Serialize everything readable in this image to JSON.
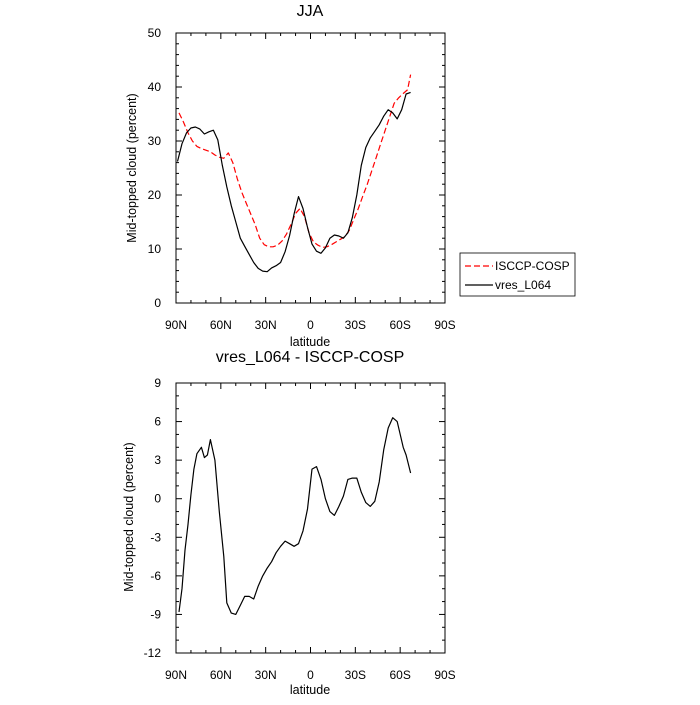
{
  "chart_data": [
    {
      "type": "line",
      "title": "JJA",
      "xlabel": "latitude",
      "ylabel": "Mid-topped cloud (percent)",
      "x_ticks": [
        90,
        60,
        30,
        0,
        -30,
        -60,
        -90
      ],
      "x_tick_labels": [
        "90N",
        "60N",
        "30N",
        "0",
        "30S",
        "60S",
        "90S"
      ],
      "xlim": [
        90,
        -90
      ],
      "y_ticks": [
        0,
        10,
        20,
        30,
        40,
        50
      ],
      "y_tick_labels": [
        "0",
        "10",
        "20",
        "30",
        "40",
        "50"
      ],
      "ylim": [
        0,
        50
      ],
      "legend_position": "right",
      "series": [
        {
          "name": "ISCCP-COSP",
          "color": "#ff0000",
          "dash": "dashed",
          "x": [
            88,
            85,
            82,
            79,
            76,
            73,
            70,
            67,
            64,
            61,
            58,
            55,
            52,
            49,
            46,
            43,
            40,
            37,
            34,
            31,
            28,
            25,
            22,
            19,
            16,
            13,
            10,
            7,
            4,
            1,
            -2,
            -5,
            -8,
            -11,
            -14,
            -17,
            -20,
            -23,
            -26,
            -29,
            -32,
            -35,
            -38,
            -41,
            -44,
            -47,
            -50,
            -53,
            -56,
            -59,
            -62,
            -65,
            -67
          ],
          "values": [
            35.2,
            33.5,
            31.5,
            30.0,
            29.0,
            28.6,
            28.3,
            28.0,
            27.4,
            27.0,
            26.8,
            27.8,
            26.0,
            23.0,
            20.5,
            18.5,
            16.5,
            14.5,
            12.0,
            10.8,
            10.4,
            10.4,
            10.7,
            11.5,
            12.8,
            14.6,
            16.6,
            17.5,
            16.0,
            13.0,
            11.3,
            10.7,
            10.3,
            10.4,
            10.8,
            11.3,
            11.8,
            12.3,
            13.5,
            15.5,
            17.5,
            19.8,
            22.0,
            24.5,
            27.0,
            29.5,
            32.0,
            34.5,
            37.0,
            38.0,
            38.8,
            39.5,
            42.3
          ]
        },
        {
          "name": "vres_L064",
          "color": "#000000",
          "dash": "solid",
          "x": [
            89,
            86,
            83,
            80,
            77,
            74,
            71,
            68,
            65,
            62,
            59,
            56,
            53,
            50,
            47,
            44,
            41,
            38,
            35,
            32,
            29,
            26,
            23,
            20,
            17,
            14,
            11,
            8,
            5,
            2,
            -1,
            -4,
            -7,
            -10,
            -13,
            -16,
            -19,
            -22,
            -25,
            -28,
            -31,
            -34,
            -37,
            -40,
            -43,
            -46,
            -49,
            -52,
            -55,
            -58,
            -61,
            -64,
            -67
          ],
          "values": [
            26.2,
            29.5,
            31.5,
            32.4,
            32.6,
            32.2,
            31.3,
            31.7,
            32.0,
            30.2,
            25.5,
            21.5,
            18.0,
            15.0,
            12.0,
            10.5,
            9.0,
            7.5,
            6.4,
            5.9,
            5.8,
            6.5,
            6.9,
            7.5,
            9.5,
            12.5,
            16.5,
            19.7,
            17.5,
            14.0,
            10.9,
            9.6,
            9.2,
            10.2,
            12.0,
            12.6,
            12.4,
            12.0,
            13.0,
            15.8,
            20.0,
            25.5,
            28.8,
            30.6,
            31.8,
            33.0,
            34.6,
            35.8,
            35.2,
            34.1,
            35.8,
            38.7,
            39.0
          ]
        }
      ]
    },
    {
      "type": "line",
      "title": "vres_L064 - ISCCP-COSP",
      "xlabel": "latitude",
      "ylabel": "Mid-topped cloud (percent)",
      "x_ticks": [
        90,
        60,
        30,
        0,
        -30,
        -60,
        -90
      ],
      "x_tick_labels": [
        "90N",
        "60N",
        "30N",
        "0",
        "30S",
        "60S",
        "90S"
      ],
      "xlim": [
        90,
        -90
      ],
      "y_ticks": [
        -12,
        -9,
        -6,
        -3,
        0,
        3,
        6,
        9
      ],
      "y_tick_labels": [
        "-12",
        "-9",
        "-6",
        "-3",
        "0",
        "3",
        "6",
        "9"
      ],
      "ylim": [
        -12,
        9
      ],
      "series": [
        {
          "color": "#000000",
          "dash": "solid",
          "x": [
            88,
            86,
            84,
            82,
            80,
            78,
            76,
            73,
            71,
            69,
            67,
            64,
            61,
            58,
            56,
            53,
            50,
            47,
            44,
            41,
            38,
            35,
            32,
            29,
            26,
            23,
            20,
            17,
            14,
            11,
            8,
            5,
            2,
            -1,
            -4,
            -7,
            -10,
            -13,
            -16,
            -19,
            -22,
            -25,
            -28,
            -31,
            -34,
            -37,
            -40,
            -43,
            -46,
            -49,
            -52,
            -55,
            -58,
            -60,
            -62,
            -64,
            -67
          ],
          "values": [
            -8.8,
            -7.0,
            -4.0,
            -2.0,
            0.3,
            2.3,
            3.5,
            4.0,
            3.2,
            3.4,
            4.6,
            3.0,
            -1.0,
            -4.5,
            -8.1,
            -8.9,
            -9.0,
            -8.3,
            -7.6,
            -7.6,
            -7.8,
            -6.8,
            -6.0,
            -5.4,
            -4.9,
            -4.2,
            -3.7,
            -3.3,
            -3.5,
            -3.7,
            -3.5,
            -2.5,
            -0.8,
            2.3,
            2.5,
            1.5,
            0.0,
            -1.0,
            -1.3,
            -0.6,
            0.2,
            1.5,
            1.6,
            1.6,
            0.5,
            -0.3,
            -0.6,
            -0.2,
            1.3,
            3.8,
            5.5,
            6.3,
            6.0,
            5.0,
            4.0,
            3.4,
            2.0
          ]
        }
      ]
    }
  ]
}
